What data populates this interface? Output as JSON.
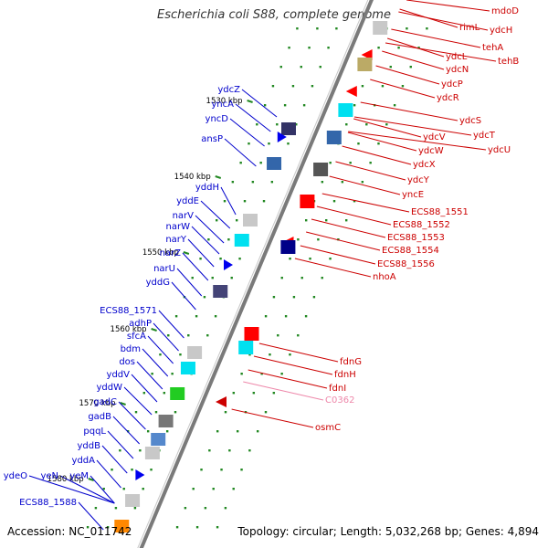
{
  "title": "Escherichia coli S88, complete genome",
  "footer": {
    "accession": "Accession: NC_011742",
    "topology": "Topology: circular; Length: 5,032,268 bp; Genes: 4,894"
  },
  "colors": {
    "forward_label": "#0000cc",
    "reverse_label": "#cc0000",
    "special_label": "#ee88aa",
    "tick_mark": "#228822",
    "backbone": "#7a7a7a"
  },
  "scale_ticks": [
    "1530 kbp",
    "1540 kbp",
    "1550 kbp",
    "1560 kbp",
    "1570 kbp",
    "1580 kbp"
  ],
  "forward_genes": [
    "ydcZ",
    "yncA",
    "yncD",
    "ansP",
    "yddH",
    "yddE",
    "narV",
    "narW",
    "narY",
    "narZ",
    "narU",
    "yddG",
    "ECS88_1571",
    "adhP",
    "sfcA",
    "bdm",
    "dos",
    "yddV",
    "yddW",
    "gadC",
    "gadB",
    "pqqL",
    "yddB",
    "yddA",
    "ydeO",
    "yeN",
    "yeM",
    "ECS88_1588"
  ],
  "reverse_genes": [
    "mdoD",
    "rimL",
    "ydcH",
    "tehA",
    "tehB",
    "ydcL",
    "ydcN",
    "ydcP",
    "ydcR",
    "ydcS",
    "ydcT",
    "ydcU",
    "ydcV",
    "ydcW",
    "ydcX",
    "ydcY",
    "yncE",
    "ECS88_1551",
    "ECS88_1552",
    "ECS88_1553",
    "ECS88_1554",
    "ECS88_1556",
    "nhoA",
    "fdnG",
    "fdnH",
    "fdnI",
    "C0362",
    "osmC"
  ]
}
